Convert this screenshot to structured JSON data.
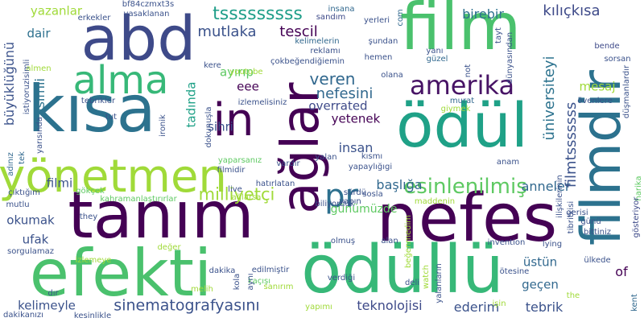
{
  "wordcloud": {
    "background": "#ffffff",
    "palette": "viridis",
    "words": [
      {
        "text": "film",
        "color": "#4ac16d"
      },
      {
        "text": "abd",
        "color": "#3e4a89"
      },
      {
        "text": "kısa",
        "color": "#2c728e"
      },
      {
        "text": "tanım",
        "color": "#440154"
      },
      {
        "text": "nefes",
        "color": "#440154"
      },
      {
        "text": "efekti",
        "color": "#4ac16d"
      },
      {
        "text": "ödüllü",
        "color": "#37b878"
      },
      {
        "text": "ödül",
        "color": "#1fa187"
      },
      {
        "text": "ağlar",
        "color": "#440154"
      },
      {
        "text": "filmdir",
        "color": "#2c728e"
      },
      {
        "text": "yönetmen",
        "color": "#a0da39"
      },
      {
        "text": "alma",
        "color": "#37b878"
      },
      {
        "text": "in",
        "color": "#440154"
      },
      {
        "text": "pr",
        "color": "#2d708e"
      },
      {
        "text": "amerika",
        "color": "#471365"
      },
      {
        "text": "esinlenilmiş",
        "color": "#5ec962"
      },
      {
        "text": "sinematografyasını",
        "color": "#3b528b"
      },
      {
        "text": "milliyetçi",
        "color": "#a0da39"
      },
      {
        "text": "tsssssssss",
        "color": "#1f9e89"
      },
      {
        "text": "birebir",
        "color": "#2d708e"
      },
      {
        "text": "kılıçkısa",
        "color": "#3e4a89"
      },
      {
        "text": "mutlaka",
        "color": "#3b528b"
      },
      {
        "text": "tescil",
        "color": "#440154"
      },
      {
        "text": "veren",
        "color": "#31688e"
      },
      {
        "text": "nefesini",
        "color": "#31688e"
      },
      {
        "text": "overrated",
        "color": "#3e4a89"
      },
      {
        "text": "yetenek",
        "color": "#440154"
      },
      {
        "text": "insan",
        "color": "#3b528b"
      },
      {
        "text": "başlığa",
        "color": "#31688e"
      },
      {
        "text": "anneler",
        "color": "#31688e"
      },
      {
        "text": "günümüzde",
        "color": "#5ec962"
      },
      {
        "text": "teknolojisi",
        "color": "#3e4a89"
      },
      {
        "text": "ederim",
        "color": "#3b528b"
      },
      {
        "text": "tebrik",
        "color": "#3b528b"
      },
      {
        "text": "geçen",
        "color": "#31688e"
      },
      {
        "text": "üstün",
        "color": "#31688e"
      },
      {
        "text": "kelimeyle",
        "color": "#3b528b"
      },
      {
        "text": "büyüklüğünü",
        "color": "#3b528b"
      },
      {
        "text": "isimli",
        "color": "#2c728e"
      },
      {
        "text": "dair",
        "color": "#2d708e"
      },
      {
        "text": "yazanlar",
        "color": "#a0da39"
      },
      {
        "text": "tadında",
        "color": "#1fa187"
      },
      {
        "text": "ayırıp",
        "color": "#5ec962"
      },
      {
        "text": "eee",
        "color": "#440154"
      },
      {
        "text": "sihri",
        "color": "#3b528b"
      },
      {
        "text": "filmi",
        "color": "#3b528b"
      },
      {
        "text": "okumak",
        "color": "#3b528b"
      },
      {
        "text": "ufak",
        "color": "#3b528b"
      },
      {
        "text": "mesaj",
        "color": "#a0da39"
      },
      {
        "text": "üniversiteyi",
        "color": "#2c728e"
      },
      {
        "text": "filmtsssssss",
        "color": "#3b528b"
      },
      {
        "text": "of",
        "color": "#440154"
      },
      {
        "text": "bf84czmxt3s",
        "color": "#3b528b"
      },
      {
        "text": "yasaklanan",
        "color": "#3b528b"
      },
      {
        "text": "erkekler",
        "color": "#3b528b"
      },
      {
        "text": "insana",
        "color": "#31688e"
      },
      {
        "text": "sandım",
        "color": "#3e4a89"
      },
      {
        "text": "yerleri",
        "color": "#3b528b"
      },
      {
        "text": "com",
        "color": "#31688e"
      },
      {
        "text": "kelimelerin",
        "color": "#31688e"
      },
      {
        "text": "reklamı",
        "color": "#3b528b"
      },
      {
        "text": "şundan",
        "color": "#3b528b"
      },
      {
        "text": "çokbeğendiğiemin",
        "color": "#3b528b"
      },
      {
        "text": "hemen",
        "color": "#3b528b"
      },
      {
        "text": "olana",
        "color": "#3b528b"
      },
      {
        "text": "yanı",
        "color": "#3b528b"
      },
      {
        "text": "güzel",
        "color": "#31688e"
      },
      {
        "text": "not",
        "color": "#3b528b"
      },
      {
        "text": "bende",
        "color": "#3e4a89"
      },
      {
        "text": "sorsan",
        "color": "#3b528b"
      },
      {
        "text": "tayt",
        "color": "#3b528b"
      },
      {
        "text": "dünyasından",
        "color": "#3b528b"
      },
      {
        "text": "düşmanlardır",
        "color": "#3b528b"
      },
      {
        "text": "övenlere",
        "color": "#3b528b"
      },
      {
        "text": "murat",
        "color": "#31688e"
      },
      {
        "text": "giymek",
        "color": "#a0da39"
      },
      {
        "text": "harika",
        "color": "#5ec962"
      },
      {
        "text": "kere",
        "color": "#3b528b"
      },
      {
        "text": "youtube",
        "color": "#a0da39"
      },
      {
        "text": "almen",
        "color": "#a0da39"
      },
      {
        "text": "istiyoruzisimli",
        "color": "#3b528b"
      },
      {
        "text": "tebrikler",
        "color": "#3b528b"
      },
      {
        "text": "izlemelisiniz",
        "color": "#3b528b"
      },
      {
        "text": "dokunuşla",
        "color": "#3b528b"
      },
      {
        "text": "tut",
        "color": "#3b528b"
      },
      {
        "text": "ironik",
        "color": "#3b528b"
      },
      {
        "text": "yarısında",
        "color": "#3b528b"
      },
      {
        "text": "tek",
        "color": "#31688e"
      },
      {
        "text": "adınız",
        "color": "#31688e"
      },
      {
        "text": "yaparsanız",
        "color": "#5ec962"
      },
      {
        "text": "filmidir",
        "color": "#3b528b"
      },
      {
        "text": "vardır",
        "color": "#3b528b"
      },
      {
        "text": "yalan",
        "color": "#3b528b"
      },
      {
        "text": "kısmı",
        "color": "#3b528b"
      },
      {
        "text": "yapaylığıgi",
        "color": "#3b528b"
      },
      {
        "text": "anam",
        "color": "#3b528b"
      },
      {
        "text": "ilişkilerinin",
        "color": "#3b528b"
      },
      {
        "text": "tibritkisi",
        "color": "#3b528b"
      },
      {
        "text": "çıktığım",
        "color": "#3b528b"
      },
      {
        "text": "gökçek",
        "color": "#5ec962"
      },
      {
        "text": "kahramanlaştırırlar",
        "color": "#5ec962"
      },
      {
        "text": "live",
        "color": "#3b528b"
      },
      {
        "text": "hatırlatan",
        "color": "#3b528b"
      },
      {
        "text": "ağlarsa",
        "color": "#a0da39"
      },
      {
        "text": "sürdü",
        "color": "#3b528b"
      },
      {
        "text": "sosla",
        "color": "#3b528b"
      },
      {
        "text": "yapın",
        "color": "#3b528b"
      },
      {
        "text": "maddenin",
        "color": "#a0da39"
      },
      {
        "text": "gerisi",
        "color": "#3b528b"
      },
      {
        "text": "mutlu",
        "color": "#3b528b"
      },
      {
        "text": "they",
        "color": "#3b528b"
      },
      {
        "text": "biliyorduk",
        "color": "#3b528b"
      },
      {
        "text": "gösteriyor",
        "color": "#3e4a89"
      },
      {
        "text": "günü",
        "color": "#3b528b"
      },
      {
        "text": "bittiniz",
        "color": "#3b528b"
      },
      {
        "text": "sorgulamaz",
        "color": "#3b528b"
      },
      {
        "text": "izlemeye",
        "color": "#a0da39"
      },
      {
        "text": "değer",
        "color": "#a0da39"
      },
      {
        "text": "olmuş",
        "color": "#3b528b"
      },
      {
        "text": "alan",
        "color": "#3b528b"
      },
      {
        "text": "beğenmedim",
        "color": "#a0da39"
      },
      {
        "text": "invention",
        "color": "#3b528b"
      },
      {
        "text": "lying",
        "color": "#3b528b"
      },
      {
        "text": "ülkede",
        "color": "#3b528b"
      },
      {
        "text": "dakika",
        "color": "#3b528b"
      },
      {
        "text": "edilmiştir",
        "color": "#3b528b"
      },
      {
        "text": "verdiği",
        "color": "#3b528b"
      },
      {
        "text": "kola",
        "color": "#3b528b"
      },
      {
        "text": "kaçışı",
        "color": "#5ec962"
      },
      {
        "text": "melih",
        "color": "#a0da39"
      },
      {
        "text": "sanırım",
        "color": "#a0da39"
      },
      {
        "text": "aynı",
        "color": "#3b528b"
      },
      {
        "text": "watch",
        "color": "#a0da39"
      },
      {
        "text": "deli",
        "color": "#3b528b"
      },
      {
        "text": "yalanların",
        "color": "#3b528b"
      },
      {
        "text": "ötesine",
        "color": "#3b528b"
      },
      {
        "text": "the",
        "color": "#a0da39"
      },
      {
        "text": "dır",
        "color": "#3b528b"
      },
      {
        "text": "yapımı",
        "color": "#a0da39"
      },
      {
        "text": "dakikanızı",
        "color": "#3b528b"
      },
      {
        "text": "kesinlikle",
        "color": "#3b528b"
      },
      {
        "text": "işin",
        "color": "#a0da39"
      },
      {
        "text": "kent",
        "color": "#31688e"
      }
    ]
  }
}
